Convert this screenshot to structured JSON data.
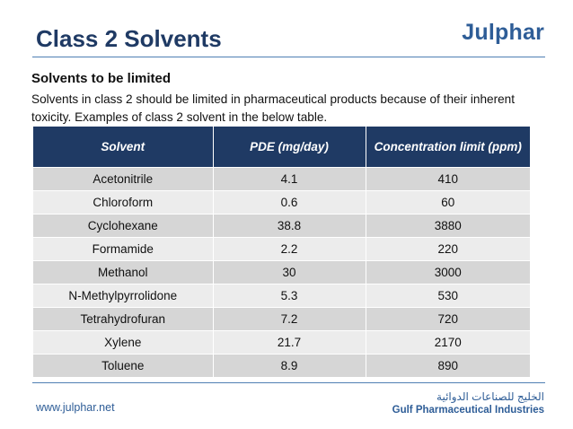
{
  "header": {
    "title": "Class 2 Solvents",
    "logo_text": "Julphar"
  },
  "content": {
    "subtitle": "Solvents to be limited",
    "intro": "Solvents in class 2 should be limited in pharmaceutical products because of their inherent toxicity. Examples of class 2 solvent in the below table."
  },
  "table": {
    "headers": [
      "Solvent",
      "PDE (mg/day)",
      "Concentration limit (ppm)"
    ],
    "rows": [
      [
        "Acetonitrile",
        "4.1",
        "410"
      ],
      [
        "Chloroform",
        "0.6",
        "60"
      ],
      [
        "Cyclohexane",
        "38.8",
        "3880"
      ],
      [
        "Formamide",
        "2.2",
        "220"
      ],
      [
        "Methanol",
        "30",
        "3000"
      ],
      [
        "N-Methylpyrrolidone",
        "5.3",
        "530"
      ],
      [
        "Tetrahydrofuran",
        "7.2",
        "720"
      ],
      [
        "Xylene",
        "21.7",
        "2170"
      ],
      [
        "Toluene",
        "8.9",
        "890"
      ]
    ]
  },
  "footer": {
    "website": "www.julphar.net",
    "company_arabic": "الخليج للصناعات الدوائية",
    "company_english": "Gulf Pharmaceutical Industries"
  },
  "colors": {
    "title": "#1f3a64",
    "header_fill": "#1f3a64",
    "row_dark": "#d6d6d6",
    "row_light": "#ececec",
    "brand_blue": "#2e5d97"
  }
}
